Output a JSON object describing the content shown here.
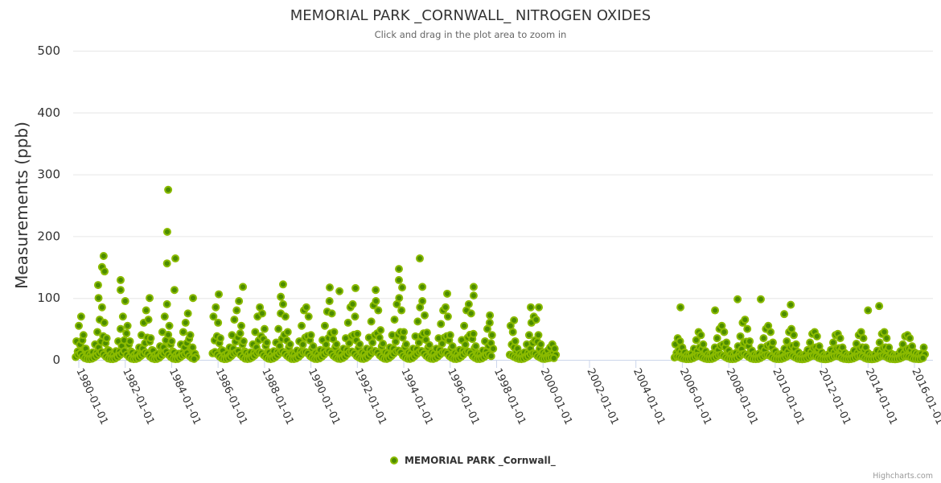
{
  "chart_data": {
    "type": "scatter",
    "title": "MEMORIAL PARK _CORNWALL_ NITROGEN OXIDES",
    "subtitle": "Click and drag in the plot area to zoom in",
    "ylabel": "Measurements (ppb)",
    "xlabel": "",
    "ylim": [
      0,
      500
    ],
    "yticks": [
      "0",
      "100",
      "200",
      "300",
      "400",
      "500"
    ],
    "ytick_values": [
      0,
      100,
      200,
      300,
      400,
      500
    ],
    "xlim": [
      1979.9,
      2016.5
    ],
    "xticks": [
      "1980-01-01",
      "1982-01-01",
      "1984-01-01",
      "1986-01-01",
      "1988-01-01",
      "1990-01-01",
      "1992-01-01",
      "1994-01-01",
      "1996-01-01",
      "1998-01-01",
      "2000-01-01",
      "2002-01-01",
      "2004-01-01",
      "2006-01-01",
      "2008-01-01",
      "2010-01-01",
      "2012-01-01",
      "2014-01-01",
      "2016-01-01"
    ],
    "xtick_values": [
      1980,
      1982,
      1984,
      1986,
      1988,
      1990,
      1992,
      1994,
      1996,
      1998,
      2000,
      2002,
      2004,
      2006,
      2008,
      2010,
      2012,
      2014,
      2016
    ],
    "grid": true,
    "legend": {
      "position": "bottom-center",
      "entries": [
        "MEMORIAL PARK _Cornwall_"
      ]
    },
    "credits": "Highcharts.com",
    "colors": {
      "marker_fill": "#4c8c00",
      "marker_stroke": "#8bbb00"
    },
    "series": [
      {
        "name": "MEMORIAL PARK _Cornwall_",
        "segments": [
          {
            "start": 1979.9,
            "step": 0.1,
            "values": [
              30,
              55,
              70,
              40,
              18,
              10,
              8,
              12,
              25,
              45,
              65,
              85,
              60,
              35,
              15,
              9,
              8,
              14,
              30,
              50,
              70,
              95,
              55,
              30,
              12,
              8,
              10,
              20,
              40,
              60,
              80,
              65,
              35,
              15,
              8,
              10,
              22,
              45,
              70,
              90,
              55,
              30,
              12,
              8,
              10,
              25,
              45,
              60,
              75,
              40,
              20,
              10
            ]
          },
          {
            "start": 1985.8,
            "step": 0.1,
            "values": [
              70,
              85,
              60,
              35,
              15,
              8,
              10,
              20,
              40,
              65,
              80,
              95,
              55,
              30,
              12,
              9,
              12,
              25,
              45,
              70,
              85,
              75,
              50,
              28,
              12,
              8,
              14,
              28,
              50,
              75,
              90,
              70,
              45,
              25,
              10,
              9,
              15,
              30,
              55,
              80,
              85,
              70,
              40,
              22,
              11,
              9,
              16,
              32,
              55,
              78,
              95,
              75,
              45,
              25,
              12,
              10,
              18,
              35,
              60,
              85,
              90,
              70,
              42,
              25,
              12,
              10,
              18,
              36,
              62,
              88,
              95,
              80,
              48,
              26,
              12,
              10,
              20,
              40,
              65,
              90,
              100,
              80,
              45,
              25,
              12,
              10,
              18,
              38,
              62,
              85,
              95,
              72,
              44,
              24,
              12,
              10,
              18,
              35,
              58,
              80,
              85,
              70,
              40,
              22,
              11,
              9,
              16,
              32,
              55,
              80,
              90,
              75,
              42,
              22,
              10,
              9,
              15,
              30,
              50,
              60,
              40
            ]
          },
          {
            "start": 1998.6,
            "step": 0.1,
            "values": [
              55,
              45,
              30,
              18,
              10,
              8,
              12,
              25,
              40,
              60,
              70,
              65,
              40,
              25,
              12,
              10,
              15,
              20,
              25,
              18
            ]
          },
          {
            "start": 2005.7,
            "step": 0.1,
            "values": [
              25,
              35,
              30,
              20,
              12,
              8,
              8,
              10,
              18,
              32,
              45,
              40,
              25,
              14,
              9,
              8,
              10,
              20,
              35,
              50,
              55,
              45,
              28,
              15,
              9,
              8,
              11,
              22,
              38,
              60,
              65,
              50,
              30,
              15,
              9,
              8,
              10,
              20,
              35,
              50,
              55,
              45,
              28,
              14,
              9,
              8,
              10,
              18,
              30,
              45,
              50,
              40,
              25,
              12,
              8,
              7,
              9,
              16,
              28,
              42,
              45,
              38,
              22,
              12,
              8,
              7,
              9,
              16,
              28,
              40,
              42,
              35,
              20,
              11,
              8,
              7,
              9,
              15,
              26,
              40,
              45,
              35,
              20,
              11,
              8,
              7,
              9,
              15,
              28,
              42,
              45,
              35,
              20,
              10,
              8,
              7,
              9,
              14,
              25,
              38,
              40,
              35,
              22,
              12,
              10,
              8,
              10,
              20
            ]
          }
        ],
        "points": [
          [
            1981.07,
            168
          ],
          [
            1981.0,
            150
          ],
          [
            1981.11,
            143
          ],
          [
            1980.83,
            121
          ],
          [
            1980.85,
            100
          ],
          [
            1981.8,
            129
          ],
          [
            1981.8,
            113
          ],
          [
            1983.05,
            100
          ],
          [
            1983.85,
            275
          ],
          [
            1983.81,
            207
          ],
          [
            1983.8,
            156
          ],
          [
            1984.16,
            164
          ],
          [
            1984.12,
            113
          ],
          [
            1984.92,
            100
          ],
          [
            1986.03,
            106
          ],
          [
            1987.07,
            118
          ],
          [
            1988.8,
            122
          ],
          [
            1988.7,
            102
          ],
          [
            1990.81,
            117
          ],
          [
            1991.23,
            111
          ],
          [
            1991.92,
            116
          ],
          [
            1992.79,
            113
          ],
          [
            1993.79,
            147
          ],
          [
            1993.79,
            129
          ],
          [
            1993.93,
            117
          ],
          [
            1994.69,
            164
          ],
          [
            1994.8,
            118
          ],
          [
            1995.87,
            107
          ],
          [
            1997.01,
            118
          ],
          [
            1997.01,
            104
          ],
          [
            1997.71,
            72
          ],
          [
            1998.75,
            64
          ],
          [
            1999.47,
            85
          ],
          [
            1999.82,
            85
          ],
          [
            2005.92,
            85
          ],
          [
            2007.41,
            80
          ],
          [
            2008.38,
            98
          ],
          [
            2009.38,
            98
          ],
          [
            2010.67,
            89
          ],
          [
            2010.39,
            74
          ],
          [
            2014.0,
            80
          ],
          [
            2014.48,
            87
          ]
        ]
      }
    ]
  }
}
